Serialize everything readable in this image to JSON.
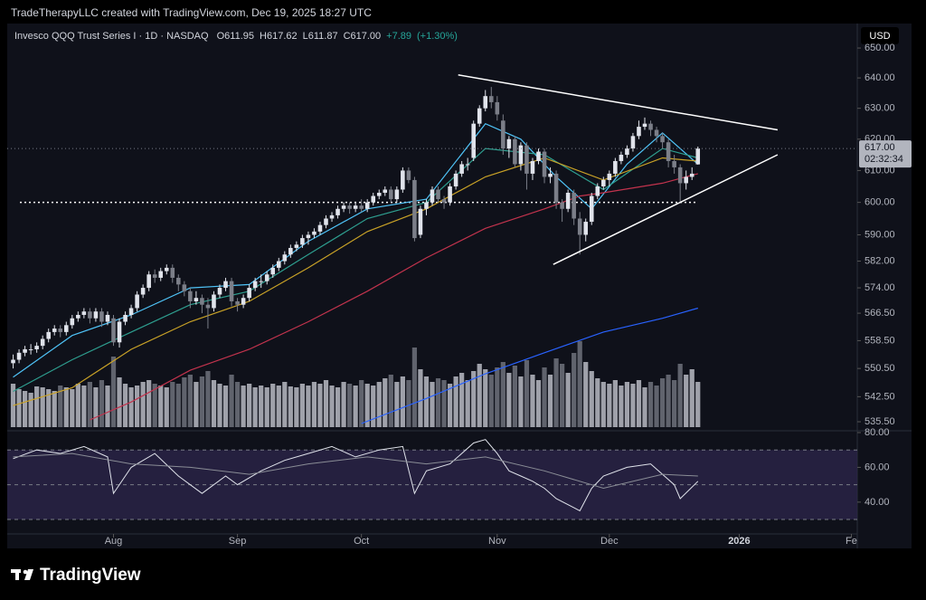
{
  "header": "TradeTherapyLLC created with TradingView.com, Dec 19, 2025 18:27 UTC",
  "footer": "TradingView",
  "chart_data": {
    "type": "candlestick",
    "legend": {
      "symbol": "Invesco QQQ Trust Series I · 1D · NASDAQ",
      "items": [
        {
          "value": 611.95,
          "label": "O611.95"
        },
        {
          "value": 617.62,
          "label": "H617.62"
        },
        {
          "value": 611.87,
          "label": "L611.87"
        },
        {
          "value": 617.0,
          "label": "C617.00"
        },
        {
          "value": 7.89,
          "label": "+7.89"
        },
        {
          "value": 1.3,
          "label": "(+1.30%)"
        }
      ]
    },
    "currency": "USD",
    "last_price": {
      "value": 617,
      "label": "617.00"
    },
    "countdown": "02:32:34",
    "log": true,
    "ylim": [
      534,
      658
    ],
    "yticks": [
      {
        "value": 535.5,
        "label": "535.50"
      },
      {
        "value": 542.5,
        "label": "542.50"
      },
      {
        "value": 550.5,
        "label": "550.50"
      },
      {
        "value": 558.5,
        "label": "558.50"
      },
      {
        "value": 566.5,
        "label": "566.50"
      },
      {
        "value": 574,
        "label": "574.00"
      },
      {
        "value": 582,
        "label": "582.00"
      },
      {
        "value": 590,
        "label": "590.00"
      },
      {
        "value": 600,
        "label": "600.00"
      },
      {
        "value": 610,
        "label": "610.00"
      },
      {
        "value": 620,
        "label": "620.00"
      },
      {
        "value": 630,
        "label": "630.00"
      },
      {
        "value": 640,
        "label": "640.00"
      },
      {
        "value": 650,
        "label": "650.00"
      }
    ],
    "xlim": [
      -1,
      143
    ],
    "xticks": [
      {
        "value": 17,
        "label": "Aug"
      },
      {
        "value": 38,
        "label": "Sep"
      },
      {
        "value": 59,
        "label": "Oct"
      },
      {
        "value": 82,
        "label": "Nov"
      },
      {
        "value": 101,
        "label": "Dec"
      },
      {
        "value": 123,
        "label": "2026"
      },
      {
        "value": 142,
        "label": "Fe"
      }
    ],
    "up_color": "#e0e3eb",
    "down_color": "#7b7e88",
    "candles": [
      [
        552,
        554.5,
        550.5,
        553
      ],
      [
        553,
        556,
        552,
        555
      ],
      [
        555,
        557,
        554,
        556
      ],
      [
        556,
        557.5,
        554.5,
        556
      ],
      [
        556,
        558,
        555,
        557
      ],
      [
        557,
        560,
        556,
        559
      ],
      [
        559,
        562,
        558,
        561
      ],
      [
        561,
        563,
        560,
        562
      ],
      [
        562,
        563,
        559.5,
        561
      ],
      [
        561,
        564,
        560,
        563
      ],
      [
        563,
        566,
        562,
        565
      ],
      [
        565,
        567,
        564,
        566
      ],
      [
        566,
        568,
        565,
        567
      ],
      [
        567,
        568,
        563.5,
        565
      ],
      [
        565,
        568,
        564,
        567
      ],
      [
        567,
        568,
        562.5,
        564
      ],
      [
        564,
        567,
        563,
        566
      ],
      [
        565,
        566,
        557,
        558
      ],
      [
        558,
        565,
        556.5,
        564
      ],
      [
        564,
        567,
        563,
        566
      ],
      [
        566,
        569,
        565,
        568
      ],
      [
        568,
        573,
        567,
        572
      ],
      [
        572,
        575,
        571,
        574
      ],
      [
        574,
        579,
        573,
        578
      ],
      [
        578,
        579.5,
        575.5,
        577
      ],
      [
        577,
        580,
        576,
        579
      ],
      [
        579,
        581,
        578,
        580
      ],
      [
        580,
        581,
        575.5,
        577
      ],
      [
        577,
        578,
        573,
        575
      ],
      [
        575,
        576,
        571.5,
        573
      ],
      [
        573,
        574,
        568,
        570
      ],
      [
        570,
        573,
        569,
        571
      ],
      [
        571,
        572,
        566.5,
        569
      ],
      [
        569,
        571,
        562,
        568
      ],
      [
        568,
        573,
        567,
        572
      ],
      [
        572,
        575,
        571,
        574
      ],
      [
        574,
        577,
        573,
        576
      ],
      [
        576,
        577,
        568.5,
        570
      ],
      [
        570,
        571,
        567,
        569
      ],
      [
        569,
        572,
        568,
        571
      ],
      [
        571,
        575,
        570,
        574
      ],
      [
        574,
        577,
        573,
        576
      ],
      [
        576,
        578,
        574,
        576
      ],
      [
        576,
        579,
        575,
        578
      ],
      [
        578,
        581,
        577,
        580
      ],
      [
        580,
        583,
        579,
        582
      ],
      [
        582,
        585,
        581,
        584
      ],
      [
        584,
        587,
        583,
        586
      ],
      [
        586,
        588,
        585,
        587
      ],
      [
        587,
        590,
        586,
        589
      ],
      [
        589,
        591,
        587,
        590
      ],
      [
        590,
        592,
        589,
        591
      ],
      [
        591,
        594,
        590,
        593
      ],
      [
        593,
        596,
        592,
        595
      ],
      [
        595,
        597,
        594,
        596
      ],
      [
        596,
        599,
        595,
        598
      ],
      [
        598,
        600,
        597,
        599
      ],
      [
        599,
        600,
        596.5,
        598
      ],
      [
        598,
        600,
        597,
        599
      ],
      [
        599,
        601,
        597,
        598
      ],
      [
        598,
        601,
        597,
        600
      ],
      [
        600,
        603,
        599,
        602
      ],
      [
        602,
        604,
        601,
        603
      ],
      [
        603,
        605,
        602,
        604
      ],
      [
        604,
        605,
        600,
        601
      ],
      [
        601,
        605,
        600,
        604
      ],
      [
        604,
        611,
        603,
        610
      ],
      [
        610,
        611,
        606,
        607
      ],
      [
        607,
        608,
        588,
        589
      ],
      [
        590,
        599,
        589,
        598
      ],
      [
        598,
        601,
        596,
        600
      ],
      [
        600,
        605,
        599,
        604
      ],
      [
        604,
        605,
        600,
        601
      ],
      [
        601,
        602,
        598,
        600
      ],
      [
        600,
        606,
        599,
        605
      ],
      [
        605,
        610,
        604,
        609
      ],
      [
        609,
        613,
        608,
        612
      ],
      [
        612,
        614,
        610,
        612
      ],
      [
        614,
        626,
        613,
        625
      ],
      [
        625,
        631,
        624,
        630
      ],
      [
        630,
        636,
        629,
        634
      ],
      [
        634,
        637,
        630,
        632
      ],
      [
        632,
        634,
        626,
        628
      ],
      [
        626,
        628,
        615,
        617
      ],
      [
        617,
        621,
        614,
        620
      ],
      [
        620,
        621,
        611,
        612
      ],
      [
        612,
        619,
        610,
        618
      ],
      [
        618,
        619,
        604,
        609
      ],
      [
        609,
        614,
        607,
        613
      ],
      [
        613,
        617,
        612,
        616
      ],
      [
        616,
        617,
        606,
        608
      ],
      [
        608,
        611,
        606,
        609
      ],
      [
        609,
        610,
        598,
        600
      ],
      [
        600,
        601,
        594,
        598
      ],
      [
        598,
        604,
        597,
        603
      ],
      [
        603,
        604,
        593,
        595
      ],
      [
        595,
        597,
        584,
        590
      ],
      [
        590,
        595,
        588,
        594
      ],
      [
        594,
        603,
        593,
        602
      ],
      [
        602,
        606,
        601,
        605
      ],
      [
        605,
        608,
        604,
        607
      ],
      [
        607,
        610,
        605,
        609
      ],
      [
        609,
        614,
        608,
        613
      ],
      [
        613,
        616,
        612,
        615
      ],
      [
        615,
        618,
        614,
        617
      ],
      [
        617,
        622,
        616,
        621
      ],
      [
        621,
        626,
        620,
        624
      ],
      [
        624,
        627,
        623,
        625
      ],
      [
        625,
        626,
        621,
        623
      ],
      [
        623,
        624,
        619,
        621
      ],
      [
        621,
        622,
        617,
        619
      ],
      [
        619,
        620,
        611,
        613
      ],
      [
        613,
        615,
        609,
        611
      ],
      [
        611,
        612,
        600,
        606
      ],
      [
        606,
        610,
        604,
        608
      ],
      [
        608,
        611,
        607,
        609
      ],
      [
        611.95,
        617.62,
        611.87,
        617
      ]
    ],
    "volume": [
      48,
      42,
      40,
      38,
      45,
      44,
      42,
      40,
      46,
      44,
      42,
      48,
      46,
      50,
      44,
      52,
      46,
      78,
      55,
      48,
      44,
      46,
      50,
      52,
      48,
      46,
      44,
      50,
      48,
      55,
      58,
      50,
      56,
      62,
      52,
      48,
      46,
      58,
      50,
      46,
      48,
      44,
      46,
      44,
      48,
      46,
      50,
      45,
      44,
      48,
      46,
      50,
      48,
      52,
      46,
      44,
      50,
      48,
      46,
      52,
      48,
      46,
      50,
      54,
      58,
      50,
      56,
      52,
      88,
      64,
      56,
      50,
      54,
      52,
      48,
      56,
      60,
      52,
      62,
      70,
      64,
      58,
      66,
      72,
      60,
      68,
      56,
      74,
      58,
      52,
      66,
      58,
      76,
      70,
      60,
      82,
      95,
      72,
      62,
      54,
      50,
      48,
      52,
      46,
      50,
      48,
      52,
      44,
      50,
      46,
      54,
      58,
      52,
      70,
      58,
      64,
      50
    ],
    "volume_lim": [
      0,
      110
    ],
    "volume_colors": [
      "#b8bbc4",
      "#6f727c"
    ],
    "poc": 600,
    "moving_averages": [
      {
        "color": "#4fc3f7",
        "x": [
          0,
          10,
          20,
          30,
          40,
          50,
          60,
          70,
          80,
          86,
          92,
          98,
          104,
          110,
          116
        ],
        "values": [
          548,
          560,
          566,
          574,
          575,
          588,
          598,
          601,
          625,
          620,
          608,
          598,
          612,
          622,
          612
        ]
      },
      {
        "color": "#2e9e8f",
        "x": [
          0,
          10,
          20,
          30,
          40,
          50,
          60,
          70,
          80,
          90,
          100,
          110,
          116
        ],
        "values": [
          544,
          553,
          561,
          569,
          573,
          584,
          595,
          600,
          617,
          615,
          604,
          617,
          614
        ]
      },
      {
        "color": "#c9a227",
        "x": [
          0,
          10,
          20,
          30,
          40,
          50,
          60,
          70,
          80,
          90,
          100,
          110,
          116
        ],
        "values": [
          540,
          545,
          556,
          564,
          570,
          580,
          591,
          598,
          608,
          614,
          607,
          614,
          613
        ]
      },
      {
        "color": "#c2334d",
        "x": [
          13,
          20,
          30,
          40,
          50,
          60,
          70,
          80,
          90,
          96,
          100,
          110,
          116
        ],
        "values": [
          536,
          541,
          550,
          556,
          564,
          573,
          583,
          592,
          598,
          602,
          603,
          606,
          609
        ]
      },
      {
        "color": "#2962ff",
        "x": [
          59,
          70,
          80,
          90,
          100,
          110,
          116
        ],
        "values": [
          535,
          542,
          549,
          555,
          561,
          565,
          568
        ]
      }
    ],
    "trendlines": [
      {
        "color": "#ffffff",
        "x": [
          75.4,
          129.5
        ],
        "values": [
          641,
          623
        ]
      },
      {
        "color": "#ffffff",
        "x": [
          91.5,
          129.5
        ],
        "values": [
          581,
          615
        ]
      }
    ],
    "rsi": {
      "ylim": [
        21.7,
        80
      ],
      "yticks": [
        {
          "value": 80,
          "label": "80.00"
        },
        {
          "value": 60,
          "label": "60.00"
        },
        {
          "value": 40,
          "label": "40.00"
        }
      ],
      "bands": [
        70,
        50,
        30
      ],
      "series": [
        {
          "color": "#e0e3eb",
          "x": [
            0,
            4,
            8,
            12,
            16,
            17,
            20,
            24,
            28,
            32,
            36,
            38,
            42,
            46,
            50,
            54,
            58,
            62,
            66,
            68,
            70,
            74,
            78,
            80,
            82,
            84,
            86,
            88,
            90,
            92,
            96,
            98,
            100,
            104,
            108,
            112,
            113,
            116
          ],
          "values": [
            65,
            70,
            68,
            72,
            66,
            45,
            60,
            68,
            55,
            45,
            55,
            50,
            58,
            64,
            68,
            72,
            66,
            70,
            72,
            45,
            58,
            62,
            74,
            76,
            68,
            58,
            55,
            52,
            48,
            42,
            35,
            48,
            55,
            60,
            62,
            50,
            42,
            52
          ]
        },
        {
          "color": "#8a8d96",
          "x": [
            0,
            10,
            20,
            30,
            40,
            50,
            60,
            70,
            80,
            90,
            100,
            110,
            116
          ],
          "values": [
            66,
            68,
            62,
            60,
            56,
            62,
            66,
            62,
            66,
            58,
            48,
            56,
            55
          ]
        }
      ]
    }
  }
}
